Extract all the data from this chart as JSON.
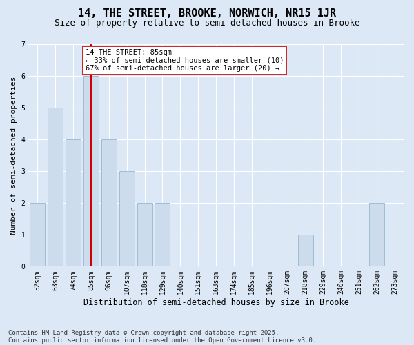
{
  "title": "14, THE STREET, BROOKE, NORWICH, NR15 1JR",
  "subtitle": "Size of property relative to semi-detached houses in Brooke",
  "xlabel": "Distribution of semi-detached houses by size in Brooke",
  "ylabel": "Number of semi-detached properties",
  "categories": [
    "52sqm",
    "63sqm",
    "74sqm",
    "85sqm",
    "96sqm",
    "107sqm",
    "118sqm",
    "129sqm",
    "140sqm",
    "151sqm",
    "163sqm",
    "174sqm",
    "185sqm",
    "196sqm",
    "207sqm",
    "218sqm",
    "229sqm",
    "240sqm",
    "251sqm",
    "262sqm",
    "273sqm"
  ],
  "values": [
    2,
    5,
    4,
    6,
    4,
    3,
    2,
    2,
    0,
    0,
    0,
    0,
    0,
    0,
    0,
    1,
    0,
    0,
    0,
    2,
    0
  ],
  "highlight_index": 3,
  "bar_color": "#ccdcec",
  "bar_edgecolor": "#a0bcd4",
  "highlight_line_color": "#cc0000",
  "annotation_box_edgecolor": "#cc0000",
  "annotation_text": "14 THE STREET: 85sqm\n← 33% of semi-detached houses are smaller (10)\n67% of semi-detached houses are larger (20) →",
  "ylim": [
    0,
    7
  ],
  "yticks": [
    0,
    1,
    2,
    3,
    4,
    5,
    6,
    7
  ],
  "background_color": "#dce8f5",
  "plot_background_color": "#dce8f5",
  "footer": "Contains HM Land Registry data © Crown copyright and database right 2025.\nContains public sector information licensed under the Open Government Licence v3.0.",
  "title_fontsize": 11,
  "subtitle_fontsize": 9,
  "xlabel_fontsize": 8.5,
  "ylabel_fontsize": 8,
  "tick_fontsize": 7,
  "annotation_fontsize": 7.5,
  "footer_fontsize": 6.5
}
